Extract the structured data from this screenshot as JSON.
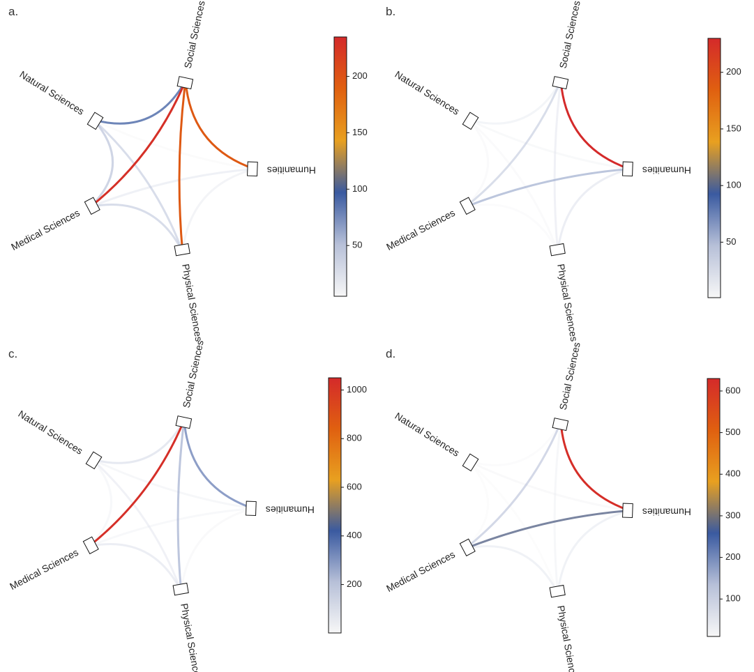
{
  "nodes": [
    "Social Sciences",
    "Humanities",
    "Physical Sciences",
    "Medical Sciences",
    "Natural Sciences"
  ],
  "colormap": [
    "#f7f7f7",
    "#b7c0d8",
    "#3a5aa0",
    "#e8a020",
    "#e06010",
    "#d42a2a"
  ],
  "panels": [
    {
      "letter": "a.",
      "vmin": 5,
      "vmax": 235,
      "ticks": [
        "50",
        "100",
        "150",
        "200"
      ],
      "tick_values": [
        50,
        100,
        150,
        200
      ],
      "edges": [
        {
          "source": "Social Sciences",
          "target": "Natural Sciences",
          "value": 95
        },
        {
          "source": "Social Sciences",
          "target": "Humanities",
          "value": 195
        },
        {
          "source": "Social Sciences",
          "target": "Physical Sciences",
          "value": 195
        },
        {
          "source": "Social Sciences",
          "target": "Medical Sciences",
          "value": 230
        },
        {
          "source": "Natural Sciences",
          "target": "Medical Sciences",
          "value": 55
        },
        {
          "source": "Natural Sciences",
          "target": "Physical Sciences",
          "value": 50
        },
        {
          "source": "Medical Sciences",
          "target": "Physical Sciences",
          "value": 50
        },
        {
          "source": "Medical Sciences",
          "target": "Humanities",
          "value": 25
        },
        {
          "source": "Humanities",
          "target": "Physical Sciences",
          "value": 20
        },
        {
          "source": "Natural Sciences",
          "target": "Humanities",
          "value": 8
        }
      ]
    },
    {
      "letter": "b.",
      "vmin": 1,
      "vmax": 230,
      "ticks": [
        "50",
        "100",
        "150",
        "200"
      ],
      "tick_values": [
        50,
        100,
        150,
        200
      ],
      "edges": [
        {
          "source": "Social Sciences",
          "target": "Humanities",
          "value": 230
        },
        {
          "source": "Social Sciences",
          "target": "Medical Sciences",
          "value": 45
        },
        {
          "source": "Medical Sciences",
          "target": "Humanities",
          "value": 60
        },
        {
          "source": "Social Sciences",
          "target": "Natural Sciences",
          "value": 15
        },
        {
          "source": "Social Sciences",
          "target": "Physical Sciences",
          "value": 20
        },
        {
          "source": "Humanities",
          "target": "Physical Sciences",
          "value": 25
        },
        {
          "source": "Natural Sciences",
          "target": "Humanities",
          "value": 8
        },
        {
          "source": "Natural Sciences",
          "target": "Physical Sciences",
          "value": 5
        },
        {
          "source": "Natural Sciences",
          "target": "Medical Sciences",
          "value": 5
        },
        {
          "source": "Medical Sciences",
          "target": "Physical Sciences",
          "value": 3
        }
      ]
    },
    {
      "letter": "c.",
      "vmin": 1,
      "vmax": 1050,
      "ticks": [
        "200",
        "400",
        "600",
        "800",
        "1000"
      ],
      "tick_values": [
        200,
        400,
        600,
        800,
        1000
      ],
      "edges": [
        {
          "source": "Social Sciences",
          "target": "Medical Sciences",
          "value": 1030
        },
        {
          "source": "Social Sciences",
          "target": "Humanities",
          "value": 360
        },
        {
          "source": "Social Sciences",
          "target": "Physical Sciences",
          "value": 270
        },
        {
          "source": "Social Sciences",
          "target": "Natural Sciences",
          "value": 140
        },
        {
          "source": "Natural Sciences",
          "target": "Physical Sciences",
          "value": 90
        },
        {
          "source": "Medical Sciences",
          "target": "Physical Sciences",
          "value": 110
        },
        {
          "source": "Natural Sciences",
          "target": "Humanities",
          "value": 50
        },
        {
          "source": "Natural Sciences",
          "target": "Medical Sciences",
          "value": 40
        },
        {
          "source": "Medical Sciences",
          "target": "Humanities",
          "value": 40
        },
        {
          "source": "Humanities",
          "target": "Physical Sciences",
          "value": 30
        }
      ]
    },
    {
      "letter": "d.",
      "vmin": 10,
      "vmax": 630,
      "ticks": [
        "100",
        "200",
        "300",
        "400",
        "500",
        "600"
      ],
      "tick_values": [
        100,
        200,
        300,
        400,
        500,
        600
      ],
      "edges": [
        {
          "source": "Social Sciences",
          "target": "Humanities",
          "value": 620
        },
        {
          "source": "Medical Sciences",
          "target": "Humanities",
          "value": 280
        },
        {
          "source": "Social Sciences",
          "target": "Medical Sciences",
          "value": 140
        },
        {
          "source": "Medical Sciences",
          "target": "Physical Sciences",
          "value": 60
        },
        {
          "source": "Humanities",
          "target": "Physical Sciences",
          "value": 60
        },
        {
          "source": "Social Sciences",
          "target": "Physical Sciences",
          "value": 40
        },
        {
          "source": "Natural Sciences",
          "target": "Humanities",
          "value": 25
        },
        {
          "source": "Social Sciences",
          "target": "Natural Sciences",
          "value": 15
        },
        {
          "source": "Natural Sciences",
          "target": "Medical Sciences",
          "value": 12
        },
        {
          "source": "Natural Sciences",
          "target": "Physical Sciences",
          "value": 10
        }
      ]
    }
  ]
}
